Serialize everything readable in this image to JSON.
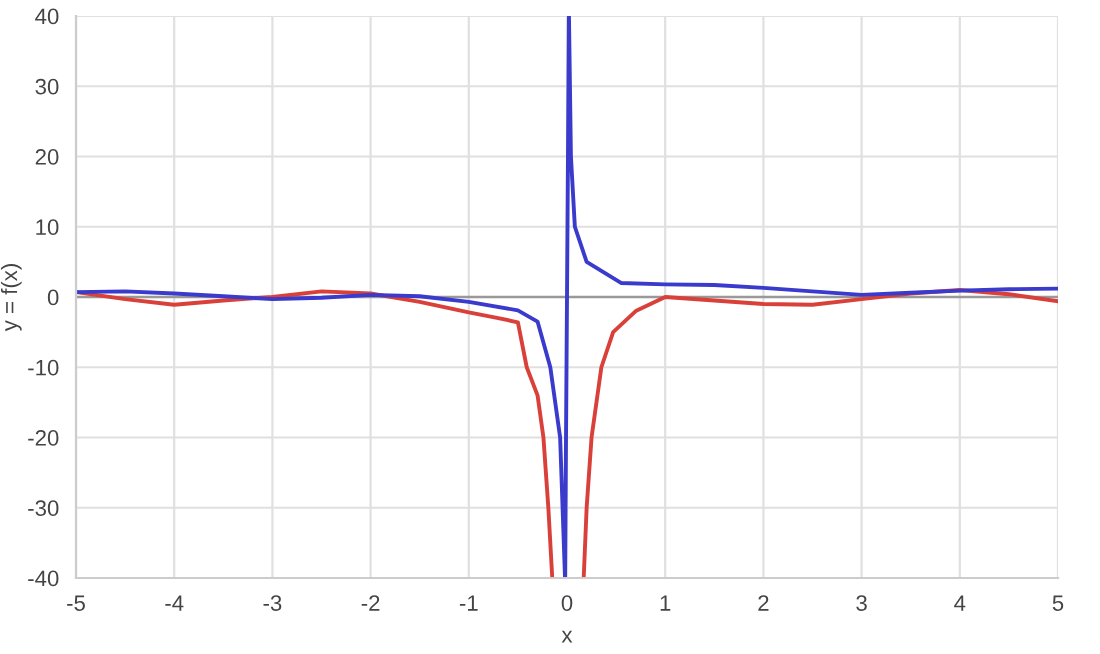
{
  "chart_data": {
    "type": "line",
    "xlabel": "x",
    "ylabel": "y = f(x)",
    "xlim": [
      -5,
      5
    ],
    "ylim": [
      -40,
      40
    ],
    "xticks": [
      -5,
      -4,
      -3,
      -2,
      -1,
      0,
      1,
      2,
      3,
      4,
      5
    ],
    "yticks": [
      -40,
      -30,
      -20,
      -10,
      0,
      10,
      20,
      30,
      40
    ],
    "grid": true,
    "series": [
      {
        "color": "#d9403a",
        "x": [
          -5,
          -4.5,
          -4,
          -3.5,
          -3,
          -2.5,
          -2,
          -1.5,
          -1,
          -0.7,
          -0.5,
          -0.41,
          -0.3,
          -0.24,
          -0.19,
          -0.15,
          0,
          0.17,
          0.2,
          0.25,
          0.35,
          0.47,
          0.7,
          1,
          1.5,
          2,
          2.5,
          3,
          3.5,
          4,
          4.5,
          5
        ],
        "values": [
          0.7,
          -0.3,
          -1.1,
          -0.5,
          0,
          0.8,
          0.5,
          -0.7,
          -2.2,
          -3,
          -3.6,
          -10,
          -14,
          -20,
          -30,
          -40,
          null,
          -40,
          -30,
          -20,
          -10,
          -5,
          -2,
          0,
          -0.5,
          -1,
          -1.1,
          -0.3,
          0.5,
          1,
          0.4,
          -0.6
        ]
      },
      {
        "color": "#3a3acc",
        "x": [
          -5,
          -4.5,
          -4,
          -3.5,
          -3,
          -2.5,
          -2,
          -1.5,
          -1,
          -0.5,
          -0.3,
          -0.17,
          -0.07,
          -0.02,
          0.02,
          0.04,
          0.08,
          0.2,
          0.55,
          1,
          1.5,
          2,
          2.5,
          3,
          3.5,
          4,
          4.5,
          5
        ],
        "values": [
          0.7,
          0.8,
          0.5,
          0.1,
          -0.3,
          -0.1,
          0.3,
          0.1,
          -0.7,
          -1.9,
          -3.5,
          -10,
          -20,
          -40,
          40,
          20,
          10,
          5,
          2,
          1.8,
          1.7,
          1.3,
          0.8,
          0.3,
          0.6,
          0.9,
          1.1,
          1.2
        ]
      }
    ]
  }
}
